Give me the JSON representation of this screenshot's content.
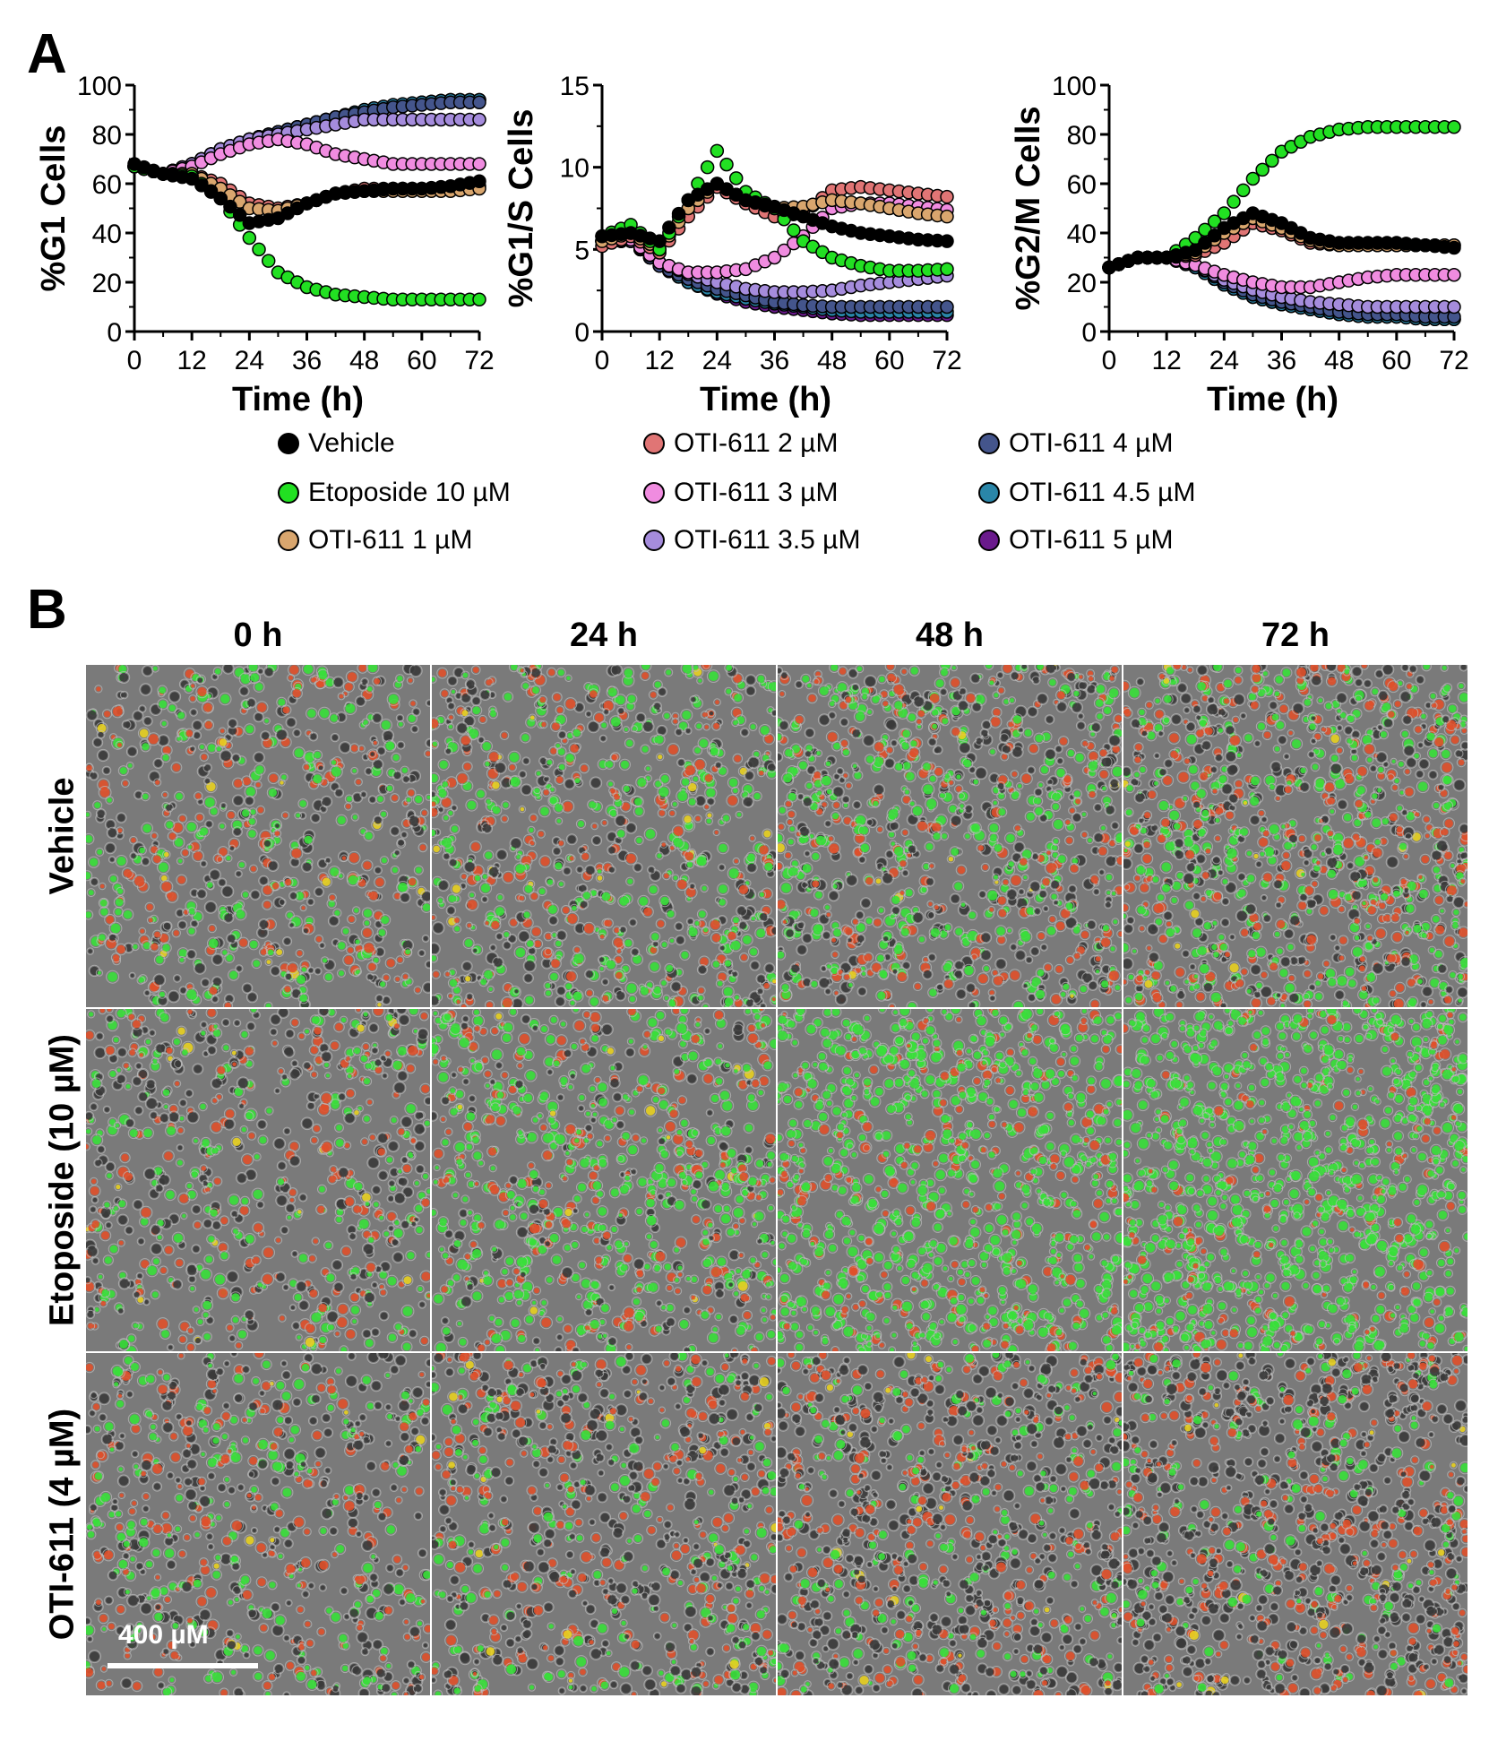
{
  "panels": {
    "a": "A",
    "b": "B"
  },
  "chart_data": [
    {
      "type": "scatter",
      "title": "",
      "xlabel": "Time (h)",
      "ylabel": "%G1 Cells",
      "xticks": [
        "0",
        "12",
        "24",
        "36",
        "48",
        "60",
        "72"
      ],
      "yticks": [
        "0",
        "20",
        "40",
        "60",
        "80",
        "100"
      ],
      "xlim": [
        0,
        72
      ],
      "ylim": [
        0,
        100
      ],
      "x": [
        0,
        6,
        12,
        18,
        24,
        30,
        36,
        42,
        48,
        54,
        60,
        66,
        72
      ],
      "series": [
        {
          "name": "Vehicle",
          "values": [
            68,
            64,
            62,
            54,
            44,
            46,
            52,
            56,
            57,
            58,
            58,
            59,
            61
          ]
        },
        {
          "name": "Etoposide 10 µM",
          "values": [
            67,
            64,
            63,
            54,
            38,
            24,
            18,
            15,
            14,
            13,
            13,
            13,
            13
          ]
        },
        {
          "name": "OTI-611 1 µM",
          "values": [
            67,
            64,
            64,
            58,
            50,
            49,
            52,
            56,
            57,
            57,
            57,
            57,
            58
          ]
        },
        {
          "name": "OTI-611 2 µM",
          "values": [
            67,
            64,
            64,
            60,
            52,
            50,
            52,
            56,
            58,
            58,
            58,
            58,
            59
          ]
        },
        {
          "name": "OTI-611 3 µM",
          "values": [
            67,
            64,
            67,
            72,
            76,
            78,
            76,
            72,
            70,
            68,
            68,
            68,
            68
          ]
        },
        {
          "name": "OTI-611 3.5 µM",
          "values": [
            67,
            64,
            68,
            74,
            78,
            80,
            82,
            84,
            86,
            86,
            86,
            86,
            86
          ]
        },
        {
          "name": "OTI-611 4 µM",
          "values": [
            67,
            64,
            68,
            74,
            78,
            81,
            84,
            87,
            89,
            91,
            92,
            93,
            93
          ]
        },
        {
          "name": "OTI-611 4.5 µM",
          "values": [
            67,
            64,
            68,
            74,
            78,
            81,
            84,
            87,
            90,
            92,
            93,
            94,
            94
          ]
        },
        {
          "name": "OTI-611 5 µM",
          "values": [
            67,
            64,
            68,
            74,
            78,
            81,
            84,
            87,
            89,
            91,
            93,
            94,
            94
          ]
        }
      ]
    },
    {
      "type": "scatter",
      "title": "",
      "xlabel": "Time (h)",
      "ylabel": "%G1/S Cells",
      "xticks": [
        "0",
        "12",
        "24",
        "36",
        "48",
        "60",
        "72"
      ],
      "yticks": [
        "0",
        "5",
        "10",
        "15"
      ],
      "xlim": [
        0,
        72
      ],
      "ylim": [
        0,
        15
      ],
      "x": [
        0,
        6,
        12,
        18,
        24,
        30,
        36,
        42,
        48,
        54,
        60,
        66,
        72
      ],
      "series": [
        {
          "name": "Vehicle",
          "values": [
            5.8,
            6.0,
            5.5,
            8.0,
            9.0,
            8.0,
            7.6,
            7.0,
            6.4,
            6.0,
            5.8,
            5.6,
            5.5
          ]
        },
        {
          "name": "Etoposide 10 µM",
          "values": [
            5.8,
            6.5,
            5.0,
            8.0,
            11.0,
            8.5,
            7.5,
            5.5,
            4.5,
            4.0,
            3.7,
            3.7,
            3.8
          ]
        },
        {
          "name": "OTI-611 1 µM",
          "values": [
            5.5,
            6.0,
            5.0,
            7.5,
            9.0,
            8.0,
            7.5,
            7.6,
            8.0,
            7.8,
            7.5,
            7.2,
            7.0
          ]
        },
        {
          "name": "OTI-611 2 µM",
          "values": [
            5.2,
            5.8,
            4.8,
            7.0,
            8.8,
            7.8,
            7.0,
            7.2,
            8.6,
            8.8,
            8.6,
            8.4,
            8.2
          ]
        },
        {
          "name": "OTI-611 3 µM",
          "values": [
            5.5,
            5.6,
            4.2,
            3.6,
            3.6,
            3.8,
            4.5,
            5.8,
            7.5,
            7.8,
            7.8,
            7.6,
            7.4
          ]
        },
        {
          "name": "OTI-611 3.5 µM",
          "values": [
            5.5,
            5.5,
            4.2,
            3.5,
            3.0,
            2.6,
            2.4,
            2.4,
            2.5,
            2.8,
            3.0,
            3.2,
            3.4
          ]
        },
        {
          "name": "OTI-611 4 µM",
          "values": [
            5.5,
            5.5,
            4.0,
            3.2,
            2.6,
            2.2,
            1.8,
            1.6,
            1.5,
            1.5,
            1.5,
            1.5,
            1.5
          ]
        },
        {
          "name": "OTI-611 4.5 µM",
          "values": [
            5.5,
            5.5,
            4.0,
            3.0,
            2.4,
            2.0,
            1.7,
            1.5,
            1.3,
            1.2,
            1.2,
            1.2,
            1.2
          ]
        },
        {
          "name": "OTI-611 5 µM",
          "values": [
            5.5,
            5.5,
            4.0,
            3.0,
            2.3,
            1.8,
            1.5,
            1.3,
            1.1,
            1.0,
            1.0,
            1.0,
            1.0
          ]
        }
      ]
    },
    {
      "type": "scatter",
      "title": "",
      "xlabel": "Time (h)",
      "ylabel": "%G2/M Cells",
      "xticks": [
        "0",
        "12",
        "24",
        "36",
        "48",
        "60",
        "72"
      ],
      "yticks": [
        "0",
        "20",
        "40",
        "60",
        "80",
        "100"
      ],
      "xlim": [
        0,
        72
      ],
      "ylim": [
        0,
        100
      ],
      "x": [
        0,
        6,
        12,
        18,
        24,
        30,
        36,
        42,
        48,
        54,
        60,
        66,
        72
      ],
      "series": [
        {
          "name": "Vehicle",
          "values": [
            26,
            30,
            30,
            33,
            42,
            48,
            44,
            38,
            36,
            36,
            36,
            35,
            34
          ]
        },
        {
          "name": "Etoposide 10 µM",
          "values": [
            26,
            30,
            30,
            38,
            48,
            62,
            73,
            79,
            82,
            83,
            83,
            83,
            83
          ]
        },
        {
          "name": "OTI-611 1 µM",
          "values": [
            26,
            30,
            30,
            32,
            40,
            46,
            42,
            37,
            35,
            35,
            35,
            35,
            35
          ]
        },
        {
          "name": "OTI-611 2 µM",
          "values": [
            26,
            30,
            30,
            31,
            36,
            44,
            41,
            36,
            35,
            35,
            35,
            35,
            35
          ]
        },
        {
          "name": "OTI-611 3 µM",
          "values": [
            26,
            30,
            30,
            27,
            23,
            20,
            18,
            18,
            20,
            22,
            23,
            23,
            23
          ]
        },
        {
          "name": "OTI-611 3.5 µM",
          "values": [
            26,
            30,
            30,
            27,
            21,
            17,
            14,
            12,
            11,
            10,
            10,
            10,
            10
          ]
        },
        {
          "name": "OTI-611 4 µM",
          "values": [
            26,
            30,
            30,
            27,
            20,
            15,
            12,
            10,
            8,
            7,
            7,
            6,
            6
          ]
        },
        {
          "name": "OTI-611 4.5 µM",
          "values": [
            26,
            30,
            30,
            26,
            19,
            14,
            11,
            9,
            7,
            6,
            6,
            5,
            5
          ]
        },
        {
          "name": "OTI-611 5 µM",
          "values": [
            26,
            30,
            30,
            26,
            19,
            14,
            11,
            9,
            7,
            6,
            6,
            5,
            5
          ]
        }
      ]
    }
  ],
  "legend": {
    "items": [
      {
        "label": "Vehicle",
        "color": "#000000"
      },
      {
        "label": "Etoposide 10 µM",
        "color": "#22e022"
      },
      {
        "label": "OTI-611 1 µM",
        "color": "#d9a66e"
      },
      {
        "label": "OTI-611 2 µM",
        "color": "#e07575"
      },
      {
        "label": "OTI-611 3 µM",
        "color": "#f08ce0"
      },
      {
        "label": "OTI-611 3.5 µM",
        "color": "#a58cdc"
      },
      {
        "label": "OTI-611 4 µM",
        "color": "#44558c"
      },
      {
        "label": "OTI-611 4.5 µM",
        "color": "#2a86a8"
      },
      {
        "label": "OTI-611 5 µM",
        "color": "#6a1a8c"
      }
    ]
  },
  "micrographs": {
    "columns": [
      "0 h",
      "24 h",
      "48 h",
      "72 h"
    ],
    "rows": [
      "Vehicle",
      "Etoposide (10 µM)",
      "OTI-611 (4 µM)"
    ],
    "green_fraction": [
      [
        0.35,
        0.4,
        0.4,
        0.4
      ],
      [
        0.35,
        0.55,
        0.78,
        0.85
      ],
      [
        0.3,
        0.25,
        0.2,
        0.15
      ]
    ],
    "scale_bar_label": "400 µM"
  }
}
